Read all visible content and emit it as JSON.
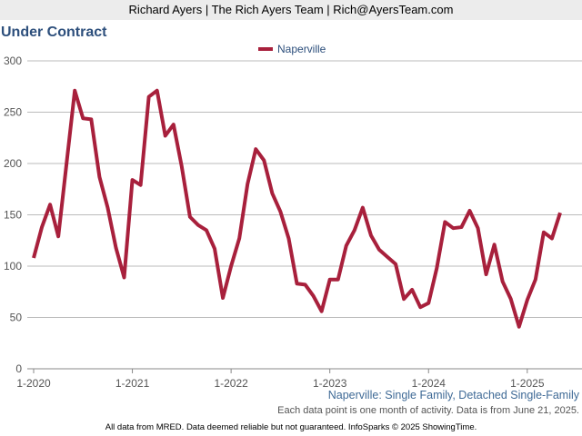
{
  "header": "Richard Ayers | The Rich Ayers Team | Rich@AyersTeam.com",
  "chart_data": {
    "type": "line",
    "title": "Under Contract",
    "categories": [
      "1-2020",
      null,
      null,
      null,
      null,
      null,
      null,
      null,
      null,
      null,
      null,
      null,
      "1-2021",
      null,
      null,
      null,
      null,
      null,
      null,
      null,
      null,
      null,
      null,
      null,
      "1-2022",
      null,
      null,
      null,
      null,
      null,
      null,
      null,
      null,
      null,
      null,
      null,
      "1-2023",
      null,
      null,
      null,
      null,
      null,
      null,
      null,
      null,
      null,
      null,
      null,
      "1-2024",
      null,
      null,
      null,
      null,
      null,
      null,
      null,
      null,
      null,
      null,
      null,
      "1-2025",
      null,
      null,
      null,
      null
    ],
    "series": [
      {
        "name": "Naperville",
        "color": "#a8203c",
        "values": [
          108,
          138,
          160,
          129,
          200,
          271,
          244,
          243,
          187,
          157,
          118,
          89,
          184,
          179,
          265,
          271,
          227,
          238,
          197,
          148,
          140,
          135,
          117,
          69,
          100,
          127,
          180,
          214,
          203,
          171,
          153,
          127,
          83,
          82,
          71,
          56,
          87,
          87,
          120,
          135,
          157,
          130,
          116,
          109,
          102,
          68,
          77,
          60,
          64,
          98,
          143,
          137,
          138,
          154,
          137,
          92,
          121,
          85,
          68,
          41,
          67,
          87,
          133,
          127,
          152
        ]
      }
    ],
    "ylim": [
      0,
      300
    ],
    "yticks": [
      0,
      50,
      100,
      150,
      200,
      250,
      300
    ],
    "grid": true,
    "legend": "top",
    "subtitle": "Naperville: Single Family, Detached Single-Family",
    "note": "Each data point is one month of activity. Data is from June 21, 2025.",
    "footer": "All data from MRED. Data deemed reliable but not guaranteed. InfoSparks © 2025 ShowingTime."
  }
}
